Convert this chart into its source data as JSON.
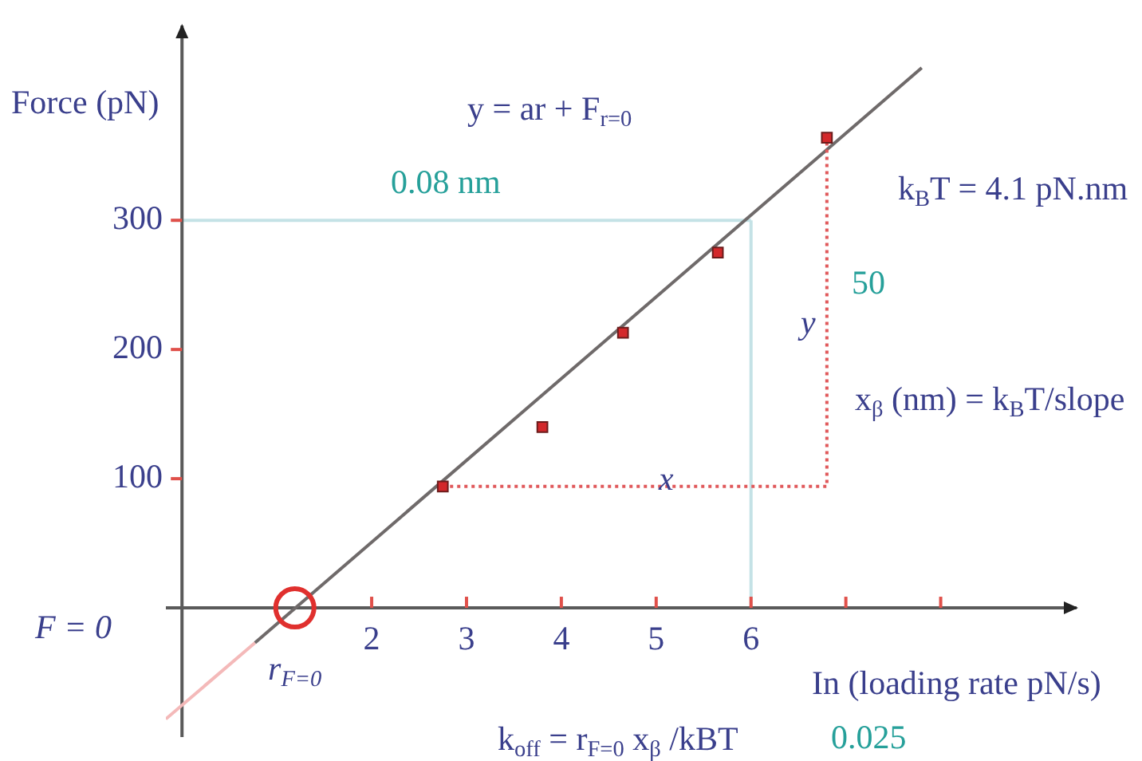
{
  "chart_data": {
    "type": "scatter",
    "title": "y = ar + F$_{r=0}$",
    "xlabel": "In (loading rate pN/s)",
    "ylabel": "Force (pN)",
    "xlim": [
      -0.17,
      9.45
    ],
    "ylim": [
      -100,
      452
    ],
    "xticks": [
      2,
      3,
      4,
      5,
      6,
      {
        "value": 7,
        "label": null
      },
      {
        "value": 8,
        "label": null
      }
    ],
    "yticks": [
      100,
      200,
      300
    ],
    "ref_lines": [
      {
        "axis": "y",
        "value": 300,
        "color": "#c4e2e6"
      },
      {
        "axis": "x",
        "value": 6,
        "color": "#c4e2e6"
      }
    ],
    "series": [
      {
        "type": "line",
        "color": "#f4b9b9",
        "marker": "none",
        "x": [
          -0.17,
          0.77
        ],
        "values": [
          -86,
          -27
        ]
      },
      {
        "type": "line",
        "color": "#6f6a6a",
        "marker": "none",
        "x": [
          0.77,
          7.8
        ],
        "values": [
          -27,
          418
        ]
      },
      {
        "type": "line",
        "color": "#e0595b",
        "marker": "none",
        "line_style": "dotted",
        "x": [
          2.75,
          6.8,
          6.8
        ],
        "values": [
          94,
          94,
          364
        ]
      },
      {
        "type": "scatter",
        "color": "#d3282b",
        "marker": "square",
        "x": [
          2.75,
          3.8,
          4.65,
          5.65,
          6.8
        ],
        "values": [
          94,
          140,
          213,
          275,
          364
        ]
      },
      {
        "type": "scatter",
        "color": "#e0302e",
        "marker": "circle",
        "x": [
          1.19
        ],
        "values": [
          0
        ]
      }
    ],
    "annotations": [
      "0.08 nm",
      "k$_{B}$T = 4.1 pN.nm",
      "50",
      "x$_{β}$ (nm) = k$_{B}$T/slope",
      "F = 0",
      "k$_{off}$ = r$_{F=0}$ x$_{β}$ /kBT",
      "0.025",
      "x",
      "y",
      {
        "text": "r$_{F=0}$",
        "x": 1.19,
        "y": 0
      }
    ]
  }
}
